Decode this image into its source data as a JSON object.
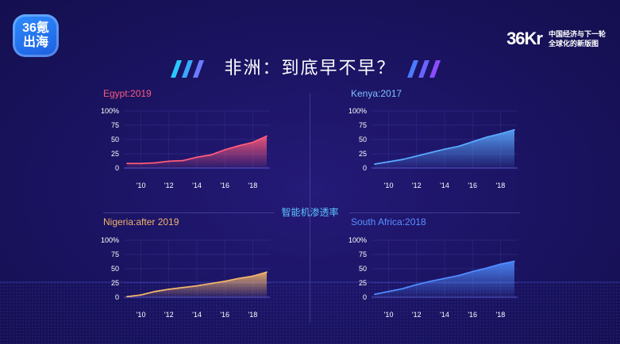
{
  "header": {
    "logo_line1": "36氪",
    "logo_line2": "出海",
    "brand_mark": "36Kr",
    "brand_tag_line1": "中国经济与下一轮",
    "brand_tag_line2": "全球化的新版图",
    "title": "非洲：到底早不早？"
  },
  "center_label": "智能机渗透率",
  "colors": {
    "egypt": "#ff5a7a",
    "kenya": "#5aa8ff",
    "nigeria": "#f2b46b",
    "south_africa": "#4f8cff"
  },
  "chart_data": [
    {
      "type": "area",
      "title": "Egypt:2019",
      "x": [
        2009,
        2010,
        2011,
        2012,
        2013,
        2014,
        2015,
        2016,
        2017,
        2018,
        2019
      ],
      "x_tick_labels": [
        "'10",
        "'12",
        "'14",
        "'16",
        "'18"
      ],
      "values": [
        8,
        8,
        9,
        12,
        13,
        19,
        23,
        32,
        39,
        45,
        56
      ],
      "y_tick_labels": [
        "100%",
        "75",
        "50",
        "25",
        "0"
      ],
      "ylim": [
        0,
        100
      ]
    },
    {
      "type": "area",
      "title": "Kenya:2017",
      "x": [
        2009,
        2010,
        2011,
        2012,
        2013,
        2014,
        2015,
        2016,
        2017,
        2018,
        2019
      ],
      "x_tick_labels": [
        "'10",
        "'12",
        "'14",
        "'16",
        "'18"
      ],
      "values": [
        7,
        11,
        15,
        21,
        27,
        33,
        38,
        46,
        54,
        60,
        67
      ],
      "y_tick_labels": [
        "100%",
        "75",
        "50",
        "25",
        "0"
      ],
      "ylim": [
        0,
        100
      ]
    },
    {
      "type": "area",
      "title": "Nigeria:after 2019",
      "x": [
        2009,
        2010,
        2011,
        2012,
        2013,
        2014,
        2015,
        2016,
        2017,
        2018,
        2019
      ],
      "x_tick_labels": [
        "'10",
        "'12",
        "'14",
        "'16",
        "'18"
      ],
      "values": [
        1,
        4,
        10,
        14,
        17,
        20,
        24,
        28,
        33,
        37,
        44
      ],
      "y_tick_labels": [
        "100%",
        "75",
        "50",
        "25",
        "0"
      ],
      "ylim": [
        0,
        100
      ]
    },
    {
      "type": "area",
      "title": "South Africa:2018",
      "x": [
        2009,
        2010,
        2011,
        2012,
        2013,
        2014,
        2015,
        2016,
        2017,
        2018,
        2019
      ],
      "x_tick_labels": [
        "'10",
        "'12",
        "'14",
        "'16",
        "'18"
      ],
      "values": [
        5,
        10,
        15,
        22,
        28,
        33,
        38,
        45,
        51,
        58,
        63
      ],
      "y_tick_labels": [
        "100%",
        "75",
        "50",
        "25",
        "0"
      ],
      "ylim": [
        0,
        100
      ]
    }
  ]
}
